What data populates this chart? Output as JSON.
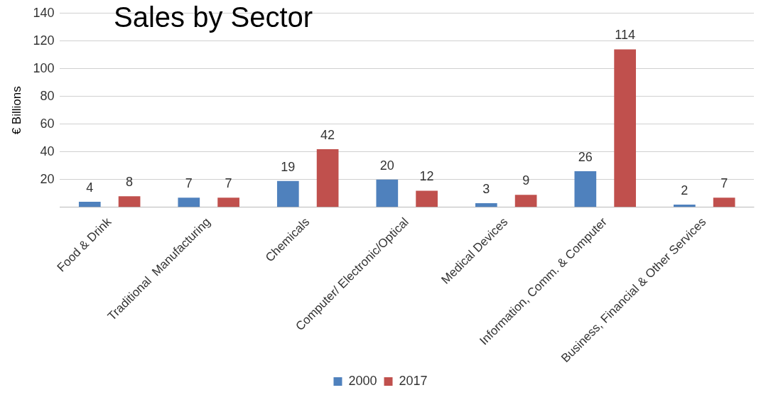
{
  "chart_data": {
    "type": "bar",
    "title": "Sales by Sector",
    "ylabel": "€ Billions",
    "categories": [
      "Food & Drink",
      "Traditional  Manufacturing",
      "Chemicals",
      "Computer/ Electronic/Optical",
      "Medical Devices",
      "Information, Comm. & Computer",
      "Business, Financial & Other Services"
    ],
    "series": [
      {
        "name": "2000",
        "color": "#4f81bd",
        "values": [
          4,
          7,
          19,
          20,
          3,
          26,
          2
        ]
      },
      {
        "name": "2017",
        "color": "#c0504d",
        "values": [
          8,
          7,
          42,
          12,
          9,
          114,
          7
        ]
      }
    ],
    "ylim": [
      0,
      140
    ],
    "yticks": [
      {
        "value": 0,
        "label": null
      },
      20,
      40,
      60,
      80,
      100,
      120,
      140
    ],
    "grid": "y",
    "legend": "bottom",
    "data_labels": true
  }
}
